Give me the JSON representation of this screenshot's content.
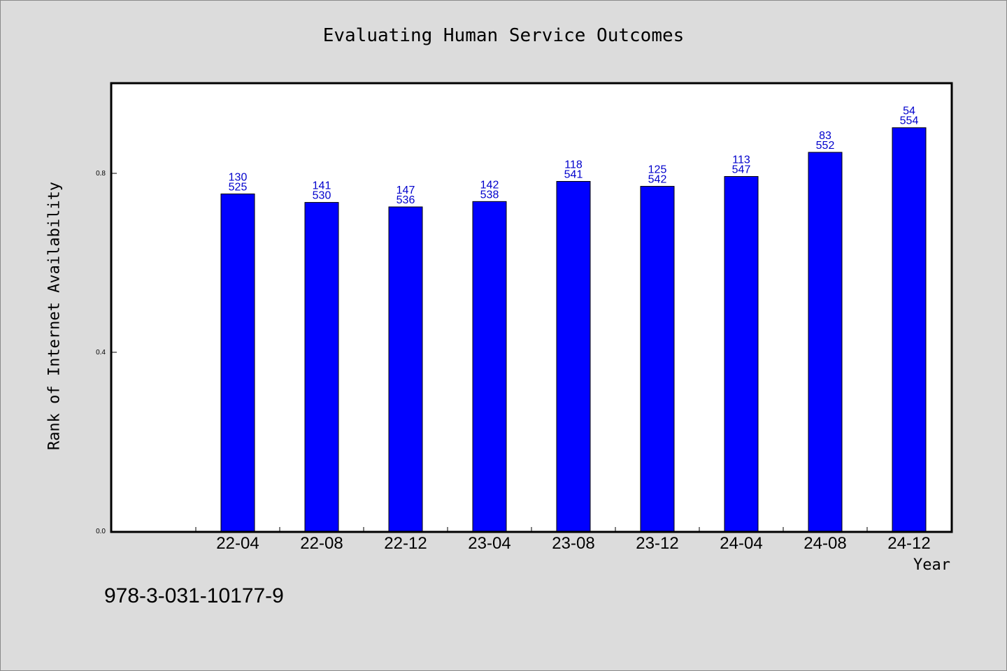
{
  "chart_data": {
    "type": "bar",
    "title": "Evaluating Human Service Outcomes",
    "xlabel": "Year",
    "ylabel": "Rank of Internet Availability",
    "categories": [
      "22-04",
      "22-08",
      "22-12",
      "23-04",
      "23-08",
      "23-12",
      "24-04",
      "24-08",
      "24-12"
    ],
    "values": [
      0.754,
      0.735,
      0.725,
      0.737,
      0.782,
      0.771,
      0.793,
      0.847,
      0.902
    ],
    "labels_top": [
      "130",
      "141",
      "147",
      "142",
      "118",
      "125",
      "113",
      "83",
      "54"
    ],
    "labels_bottom": [
      "525",
      "530",
      "536",
      "538",
      "541",
      "542",
      "547",
      "552",
      "554"
    ],
    "ylim": [
      0,
      1.0
    ],
    "yticks": [
      0.0,
      0.4,
      0.8
    ],
    "ytick_labels": [
      "0.0",
      "0.4",
      "0.8"
    ],
    "grid": false,
    "bar_color": "#0000ff",
    "label_color": "#0000cc"
  },
  "footer": {
    "isbn": "978-3-031-10177-9"
  }
}
